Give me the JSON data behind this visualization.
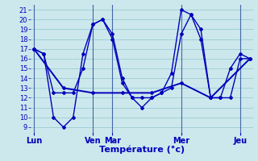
{
  "xlabel": "Température (°c)",
  "background_color": "#cce8ec",
  "grid_color": "#99ccd4",
  "line_color": "#0000bb",
  "ylim": [
    8.5,
    21.5
  ],
  "yticks": [
    9,
    10,
    11,
    12,
    13,
    14,
    15,
    16,
    17,
    18,
    19,
    20,
    21
  ],
  "day_labels": [
    "Lun",
    "Ven",
    "Mar",
    "Mer",
    "Jeu"
  ],
  "vline_color": "#4466aa",
  "series1_x": [
    0,
    1,
    2,
    3,
    4,
    5,
    6,
    7,
    8,
    9,
    10,
    11,
    12,
    13,
    14,
    15,
    16,
    17,
    18,
    19,
    20,
    21,
    22
  ],
  "series1_y": [
    17.0,
    16.5,
    10.0,
    9.0,
    10.0,
    16.5,
    19.5,
    20.0,
    18.0,
    13.5,
    12.0,
    11.0,
    12.0,
    12.5,
    13.0,
    18.5,
    20.5,
    18.0,
    12.0,
    12.0,
    12.0,
    16.0,
    16.0
  ],
  "series2_x": [
    0,
    1,
    2,
    3,
    4,
    5,
    6,
    7,
    8,
    9,
    10,
    11,
    12,
    13,
    14,
    15,
    16,
    17,
    18,
    19,
    20,
    21,
    22
  ],
  "series2_y": [
    17.0,
    16.5,
    12.5,
    12.5,
    12.5,
    15.0,
    19.5,
    20.0,
    18.5,
    14.0,
    12.0,
    12.0,
    12.0,
    12.5,
    14.5,
    21.0,
    20.5,
    19.0,
    12.0,
    12.0,
    15.0,
    16.5,
    16.0
  ],
  "series3_x": [
    0,
    3,
    6,
    9,
    12,
    15,
    18,
    22
  ],
  "series3_y": [
    17.0,
    13.0,
    12.5,
    12.5,
    12.5,
    13.5,
    12.0,
    16.0
  ],
  "xlim": [
    -0.3,
    22.3
  ],
  "day_x": [
    0,
    6,
    8,
    15,
    21
  ],
  "xlabel_fontsize": 8,
  "tick_fontsize": 6,
  "linewidth": 1.0,
  "markersize": 2.0
}
